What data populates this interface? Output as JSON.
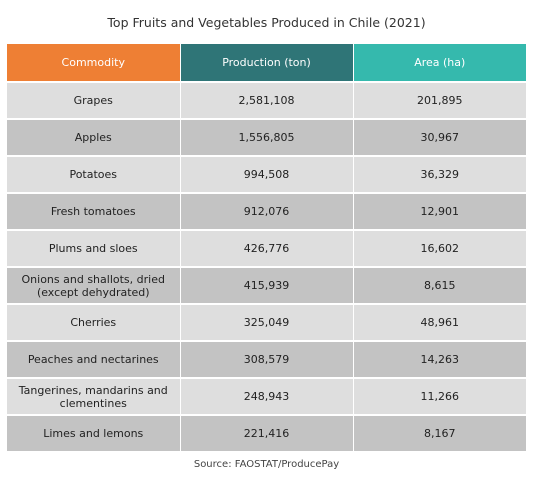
{
  "title": "Top Fruits and Vegetables Produced in Chile (2021)",
  "header": {
    "commodity": "Commodity",
    "production": "Production (ton)",
    "area": "Area (ha)"
  },
  "rows": [
    {
      "commodity": "Grapes",
      "production": "2,581,108",
      "area": "201,895"
    },
    {
      "commodity": "Apples",
      "production": "1,556,805",
      "area": "30,967"
    },
    {
      "commodity": "Potatoes",
      "production": "994,508",
      "area": "36,329"
    },
    {
      "commodity": "Fresh tomatoes",
      "production": "912,076",
      "area": "12,901"
    },
    {
      "commodity": "Plums and sloes",
      "production": "426,776",
      "area": "16,602"
    },
    {
      "commodity": "Onions and shallots, dried (except dehydrated)",
      "production": "415,939",
      "area": "8,615"
    },
    {
      "commodity": "Cherries",
      "production": "325,049",
      "area": "48,961"
    },
    {
      "commodity": "Peaches and nectarines",
      "production": "308,579",
      "area": "14,263"
    },
    {
      "commodity": "Tangerines, mandarins and clementines",
      "production": "248,943",
      "area": "11,266"
    },
    {
      "commodity": "Limes and lemons",
      "production": "221,416",
      "area": "8,167"
    }
  ],
  "source": "Source: FAOSTAT/ProducePay",
  "colors": {
    "commodity_header": "#ee7f34",
    "production_header": "#2f7577",
    "area_header": "#35b9ad",
    "row_light": "#dedede",
    "row_dark": "#c3c3c3"
  }
}
